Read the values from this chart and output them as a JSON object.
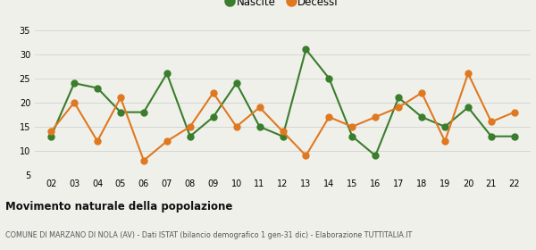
{
  "years": [
    2,
    3,
    4,
    5,
    6,
    7,
    8,
    9,
    10,
    11,
    12,
    13,
    14,
    15,
    16,
    17,
    18,
    19,
    20,
    21,
    22
  ],
  "nascite": [
    13,
    24,
    23,
    18,
    18,
    26,
    13,
    17,
    24,
    15,
    13,
    31,
    25,
    13,
    9,
    21,
    17,
    15,
    19,
    13,
    13
  ],
  "decessi": [
    14,
    20,
    12,
    21,
    8,
    12,
    15,
    22,
    15,
    19,
    14,
    9,
    17,
    15,
    17,
    19,
    22,
    12,
    26,
    16,
    18
  ],
  "nascite_color": "#3a7d2c",
  "decessi_color": "#e07820",
  "bg_color": "#f0f0eb",
  "grid_color": "#d0d0d0",
  "title": "Movimento naturale della popolazione",
  "subtitle": "COMUNE DI MARZANO DI NOLA (AV) - Dati ISTAT (bilancio demografico 1 gen-31 dic) - Elaborazione TUTTITALIA.IT",
  "legend_nascite": "Nascite",
  "legend_decessi": "Decessi",
  "ylim": [
    5,
    35
  ],
  "yticks": [
    5,
    10,
    15,
    20,
    25,
    30,
    35
  ],
  "marker_size": 5,
  "line_width": 1.5
}
